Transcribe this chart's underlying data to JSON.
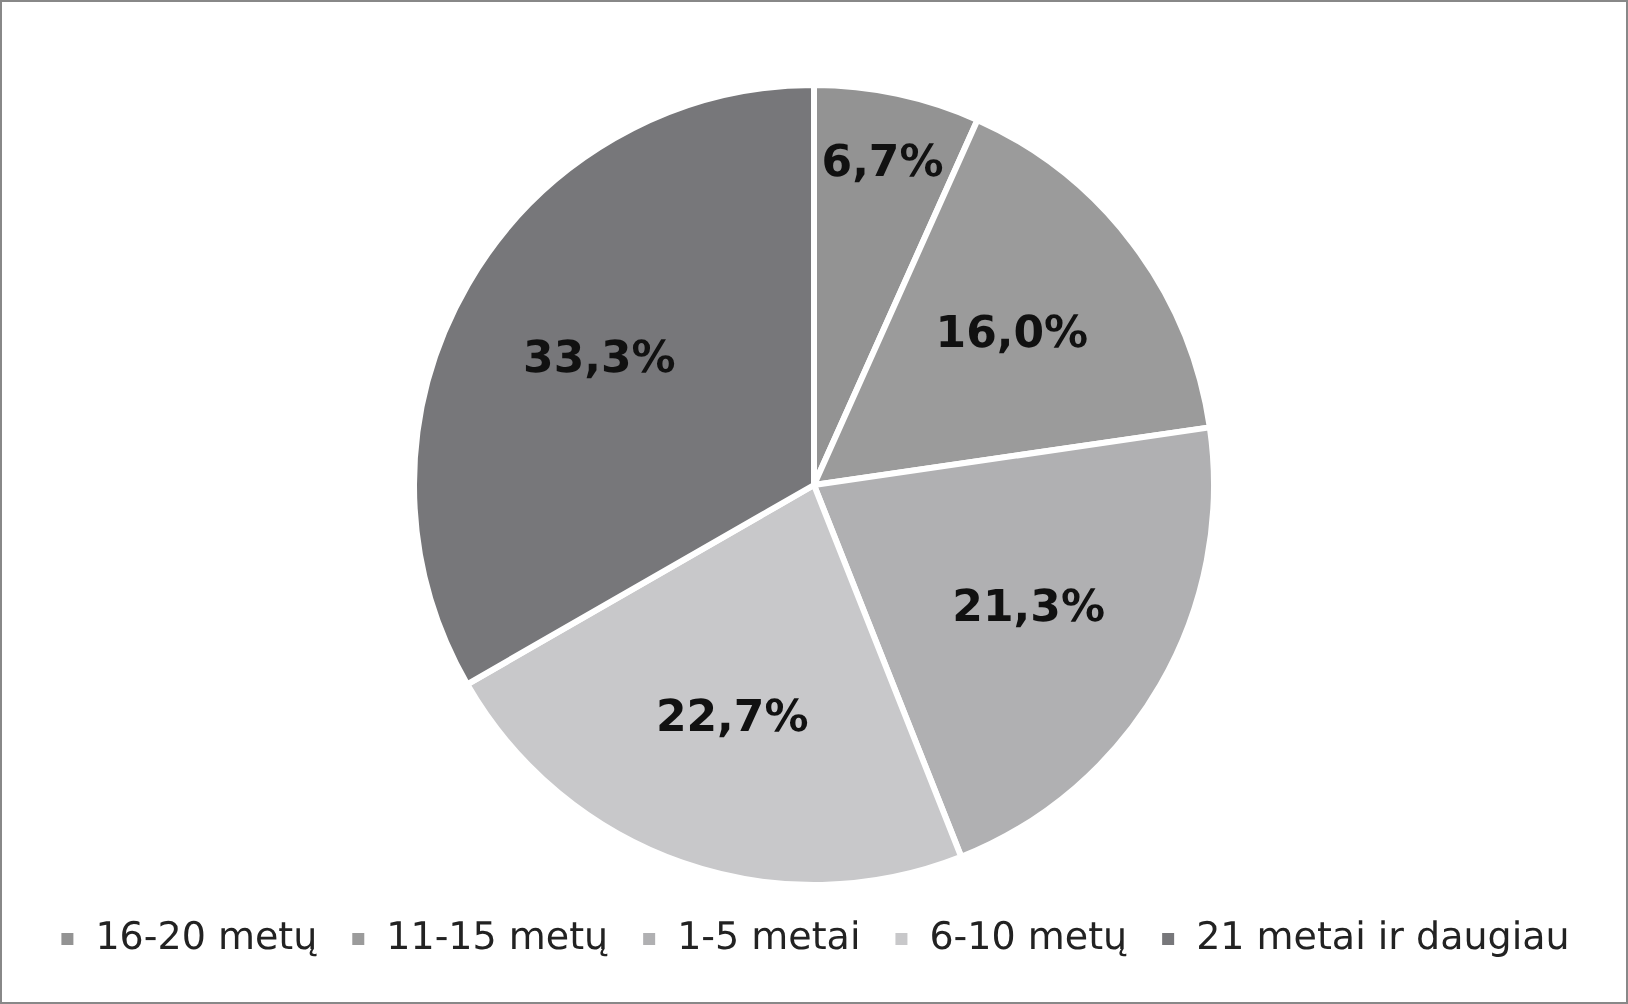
{
  "chart_data": {
    "type": "pie",
    "categories": [
      "16-20 metų",
      "11-15 metų",
      "1-5 metai",
      "6-10 metų",
      "21 metai ir daugiau"
    ],
    "values": [
      6.7,
      16.0,
      21.3,
      22.7,
      33.3
    ],
    "value_labels": [
      "6,7%",
      "16,0%",
      "21,3%",
      "22,7%",
      "33,3%"
    ],
    "colors": [
      "#939393",
      "#9b9b9b",
      "#b0b0b2",
      "#c8c8ca",
      "#77777a"
    ],
    "legend": "bottom"
  }
}
